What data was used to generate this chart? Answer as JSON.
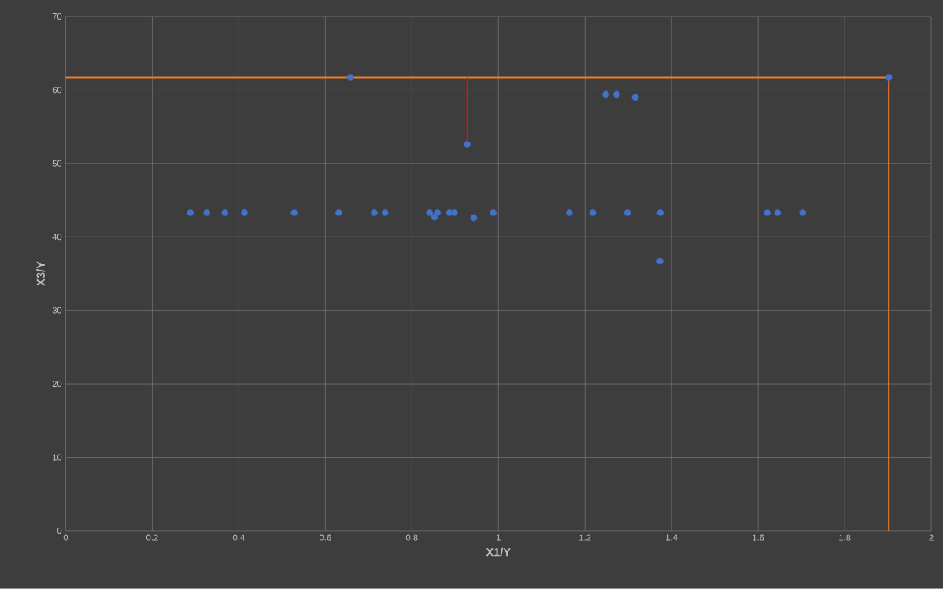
{
  "chart_data": {
    "type": "scatter",
    "xlabel": "X1/Y",
    "ylabel": "X3/Y",
    "xlim": [
      0,
      2
    ],
    "ylim": [
      0,
      70
    ],
    "xticks": [
      0,
      0.2,
      0.4,
      0.6,
      0.8,
      1,
      1.2,
      1.4,
      1.6,
      1.8,
      2
    ],
    "yticks": [
      0,
      10,
      20,
      30,
      40,
      50,
      60,
      70
    ],
    "grid": true,
    "marker": "circle",
    "series": [
      {
        "color": "#4472c4",
        "x": [
          0.288,
          0.326,
          0.368,
          0.413,
          0.528,
          0.631,
          0.713,
          0.738,
          0.841,
          0.852,
          0.859,
          0.887,
          0.898,
          0.928,
          0.943,
          0.988,
          0.658,
          1.164,
          1.218,
          1.298,
          1.374,
          1.373,
          1.621,
          1.645,
          1.703,
          1.248,
          1.273,
          1.316,
          1.902
        ],
        "values": [
          43.3,
          43.3,
          43.3,
          43.3,
          43.3,
          43.3,
          43.3,
          43.3,
          43.3,
          42.7,
          43.3,
          43.3,
          43.3,
          52.6,
          42.6,
          43.3,
          61.7,
          43.3,
          43.3,
          43.3,
          43.3,
          36.7,
          43.3,
          43.3,
          43.3,
          59.4,
          59.4,
          59.0,
          61.7
        ]
      },
      {
        "type": "line",
        "color": "#ed7d31",
        "marker": "none",
        "x": [
          0,
          1.902,
          1.902
        ],
        "values": [
          61.7,
          61.7,
          0
        ]
      },
      {
        "type": "line",
        "color": "#e01010",
        "marker": "none",
        "x": [
          0.928,
          0.928
        ],
        "values": [
          61.7,
          52.6
        ]
      }
    ]
  }
}
